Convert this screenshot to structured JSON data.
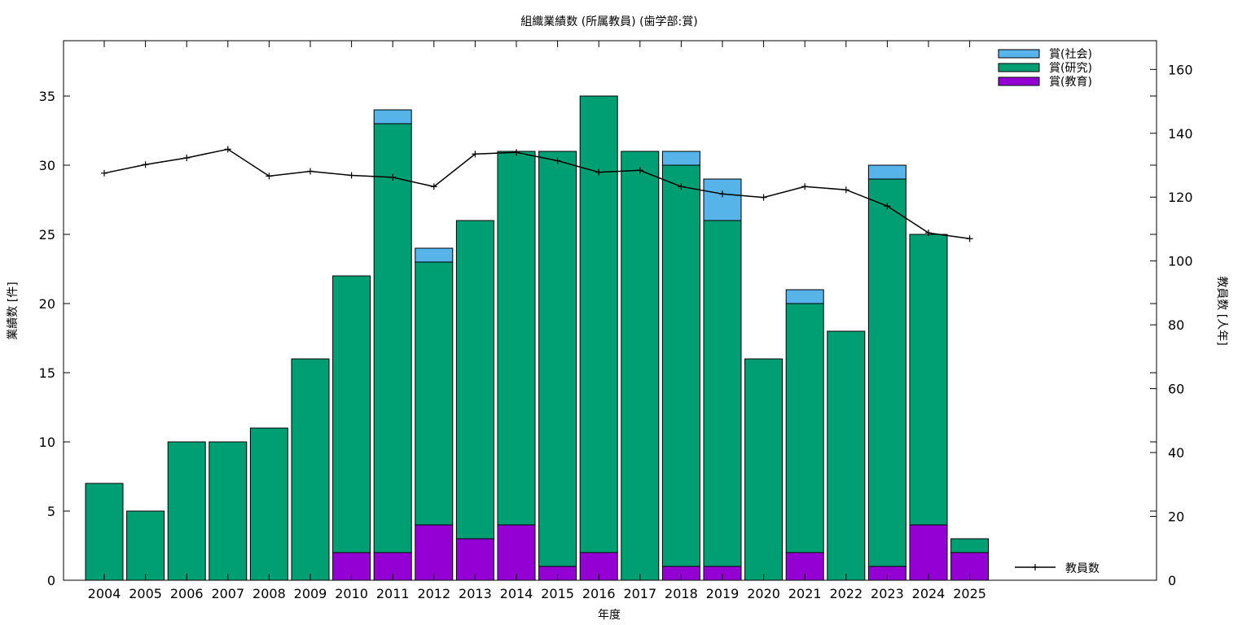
{
  "chart_data": {
    "type": "bar",
    "stacked": true,
    "title": "組織業績数 (所属教員) (歯学部:賞)",
    "xlabel": "年度",
    "ylabel": "業績数 [件]",
    "y2label": "教員数 [人年]",
    "ylim": [
      0,
      39
    ],
    "y2lim": [
      0,
      169
    ],
    "yticks": [
      0,
      5,
      10,
      15,
      20,
      25,
      30,
      35
    ],
    "y2ticks": [
      0,
      20,
      40,
      60,
      80,
      100,
      120,
      140,
      160
    ],
    "categories": [
      "2004",
      "2005",
      "2006",
      "2007",
      "2008",
      "2009",
      "2010",
      "2011",
      "2012",
      "2013",
      "2014",
      "2015",
      "2016",
      "2017",
      "2018",
      "2019",
      "2020",
      "2021",
      "2022",
      "2023",
      "2024",
      "2025"
    ],
    "series": [
      {
        "name": "賞(教育)",
        "color": "#9400d3",
        "values": [
          0,
          0,
          0,
          0,
          0,
          0,
          2,
          2,
          4,
          3,
          4,
          1,
          2,
          0,
          1,
          1,
          0,
          2,
          0,
          1,
          4,
          2
        ]
      },
      {
        "name": "賞(研究)",
        "color": "#009e73",
        "values": [
          7,
          5,
          10,
          10,
          11,
          16,
          20,
          31,
          19,
          23,
          27,
          30,
          33,
          31,
          29,
          25,
          16,
          18,
          18,
          28,
          21,
          1
        ]
      },
      {
        "name": "賞(社会)",
        "color": "#56b4e9",
        "values": [
          0,
          0,
          0,
          0,
          0,
          0,
          0,
          1,
          1,
          0,
          0,
          0,
          0,
          0,
          1,
          3,
          0,
          1,
          0,
          1,
          0,
          0
        ]
      }
    ],
    "line": {
      "name": "教員数",
      "color": "#000000",
      "axis": "y2",
      "values": [
        127.5,
        130.2,
        132.3,
        135.0,
        126.6,
        128.1,
        126.8,
        126.2,
        123.3,
        133.5,
        134.0,
        131.4,
        127.8,
        128.4,
        123.3,
        121.0,
        119.9,
        123.3,
        122.3,
        117.2,
        108.8,
        107.0
      ]
    },
    "legend_position": "top-right",
    "grid": false
  }
}
